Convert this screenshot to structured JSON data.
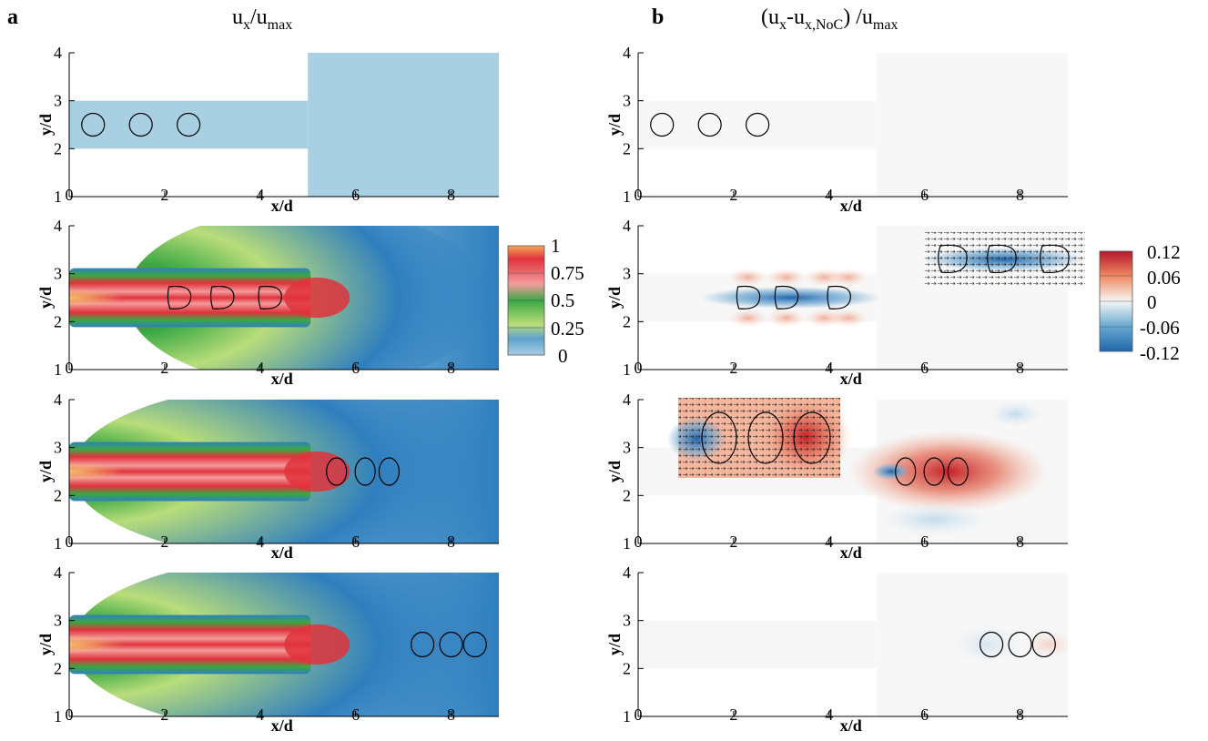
{
  "figure": {
    "panel_a_letter": "a",
    "panel_b_letter": "b",
    "title_a": {
      "base": "u",
      "sub1": "x",
      "mid": "/u",
      "sub2": "max"
    },
    "title_b": {
      "open": "(u",
      "sub1": "x",
      "mid": "-u",
      "sub2": "x,NoC",
      "close": ") /u",
      "sub3": "max"
    }
  },
  "colorbar_a": {
    "ticks": [
      "1",
      "0.75",
      "0.5",
      "0.25",
      "0"
    ]
  },
  "colorbar_b": {
    "ticks": [
      "0.12",
      "0.06",
      "0",
      "-0.06",
      "-0.12"
    ]
  },
  "colors": {
    "ux_max": "#f6c06a",
    "ux_high": "#e0323c",
    "ux_pink": "#f39b9b",
    "ux_green": "#3aa844",
    "ux_light": "#b9dd7a",
    "ux_blue": "#2f7fbf",
    "ux_pale": "#a9cfe3",
    "diff_pos": "#c32128",
    "diff_neg": "#2166ac",
    "diff_zero": "#f7f7f7"
  },
  "chart_data": [
    {
      "type": "heatmap",
      "panel": "a-1",
      "xlabel": "x/d",
      "ylabel": "y/d",
      "xlim": [
        0,
        9
      ],
      "ylim": [
        1,
        4
      ],
      "x_ticks": [
        "0",
        "2",
        "4",
        "6",
        "8"
      ],
      "y_ticks": [
        "1",
        "2",
        "3",
        "4"
      ],
      "droplet_centers_x": [
        0.5,
        1.5,
        2.5
      ],
      "droplet_center_y": 2.5
    },
    {
      "type": "heatmap",
      "panel": "a-2",
      "xlabel": "x/d",
      "ylabel": "y/d",
      "xlim": [
        0,
        9
      ],
      "ylim": [
        1,
        4
      ],
      "x_ticks": [
        "0",
        "2",
        "4",
        "6",
        "8"
      ],
      "y_ticks": [
        "1",
        "2",
        "3",
        "4"
      ],
      "droplet_centers_x": [
        2.3,
        3.2,
        4.2
      ],
      "droplet_center_y": 2.5
    },
    {
      "type": "heatmap",
      "panel": "a-3",
      "xlabel": "x/d",
      "ylabel": "y/d",
      "xlim": [
        0,
        9
      ],
      "ylim": [
        1,
        4
      ],
      "x_ticks": [
        "0",
        "2",
        "4",
        "6",
        "8"
      ],
      "y_ticks": [
        "1",
        "2",
        "3",
        "4"
      ],
      "droplet_centers_x": [
        5.6,
        6.2,
        6.7
      ],
      "droplet_center_y": 2.5
    },
    {
      "type": "heatmap",
      "panel": "a-4",
      "xlabel": "x/d",
      "ylabel": "y/d",
      "xlim": [
        0,
        9
      ],
      "ylim": [
        1,
        4
      ],
      "x_ticks": [
        "0",
        "2",
        "4",
        "6",
        "8"
      ],
      "y_ticks": [
        "1",
        "2",
        "3",
        "4"
      ],
      "droplet_centers_x": [
        7.4,
        8.0,
        8.5
      ],
      "droplet_center_y": 2.5
    },
    {
      "type": "heatmap",
      "panel": "b-1",
      "xlabel": "x/d",
      "ylabel": "y/d",
      "xlim": [
        0,
        9
      ],
      "ylim": [
        1,
        4
      ],
      "x_ticks": [
        "0",
        "2",
        "4",
        "6",
        "8"
      ],
      "y_ticks": [
        "1",
        "2",
        "3",
        "4"
      ],
      "droplet_centers_x": [
        0.5,
        1.5,
        2.5
      ],
      "droplet_center_y": 2.5
    },
    {
      "type": "heatmap",
      "panel": "b-2",
      "xlabel": "x/d",
      "ylabel": "y/d",
      "xlim": [
        0,
        9
      ],
      "ylim": [
        1,
        4
      ],
      "x_ticks": [
        "0",
        "2",
        "4",
        "6",
        "8"
      ],
      "y_ticks": [
        "1",
        "2",
        "3",
        "4"
      ],
      "droplet_centers_x": [
        2.3,
        3.1,
        4.2
      ],
      "droplet_center_y": 2.5
    },
    {
      "type": "heatmap",
      "panel": "b-3",
      "xlabel": "x/d",
      "ylabel": "y/d",
      "xlim": [
        0,
        9
      ],
      "ylim": [
        1,
        4
      ],
      "x_ticks": [
        "0",
        "2",
        "4",
        "6",
        "8"
      ],
      "y_ticks": [
        "1",
        "2",
        "3",
        "4"
      ],
      "droplet_centers_x": [
        5.6,
        6.2,
        6.7
      ],
      "droplet_center_y": 2.5
    },
    {
      "type": "heatmap",
      "panel": "b-4",
      "xlabel": "x/d",
      "ylabel": "y/d",
      "xlim": [
        0,
        9
      ],
      "ylim": [
        1,
        4
      ],
      "x_ticks": [
        "0",
        "2",
        "4",
        "6",
        "8"
      ],
      "y_ticks": [
        "1",
        "2",
        "3",
        "4"
      ],
      "droplet_centers_x": [
        7.4,
        8.0,
        8.5
      ],
      "droplet_center_y": 2.5
    }
  ]
}
